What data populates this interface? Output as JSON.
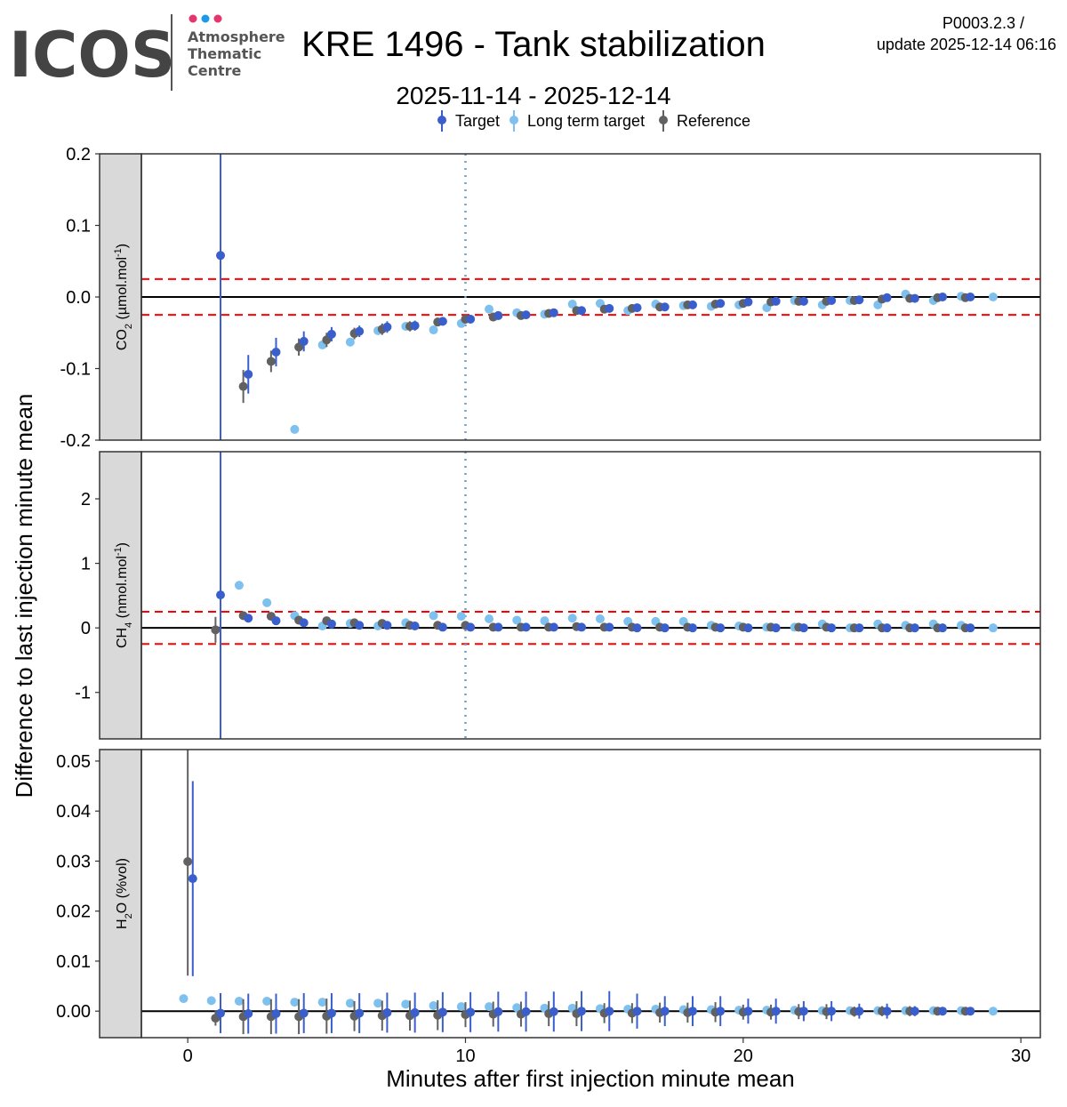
{
  "header": {
    "logo_text": "ICOS",
    "logo_sub": [
      "Atmosphere",
      "Thematic",
      "Centre"
    ],
    "logo_dot_colors": [
      "#e8336d",
      "#1a9ae8",
      "#e8336d"
    ],
    "title": "KRE 1496 - Tank stabilization",
    "subtitle": "2025-11-14 - 2025-12-14",
    "version": "P0003.2.3 /",
    "update": "update  2025-12-14 06:16"
  },
  "legend": [
    {
      "label": "Target",
      "color": "#3a5fcd"
    },
    {
      "label": "Long term target",
      "color": "#7ec0ee"
    },
    {
      "label": "Reference",
      "color": "#616161"
    }
  ],
  "chart_data": {
    "type": "scatter",
    "title": "KRE 1496 - Tank stabilization",
    "subtitle": "2025-11-14 - 2025-12-14",
    "xlabel": "Minutes after first injection minute mean",
    "ylabel": "Difference to last injection minute mean",
    "xlim": [
      -1.67,
      30.7
    ],
    "xticks": [
      "0",
      "10",
      "20",
      "30"
    ],
    "xtick_values": [
      0,
      10,
      20,
      30
    ],
    "vline_x": 10,
    "x_minutes": [
      0,
      1,
      2,
      3,
      4,
      5,
      6,
      7,
      8,
      9,
      10,
      11,
      12,
      13,
      14,
      15,
      16,
      17,
      18,
      19,
      20,
      21,
      22,
      23,
      24,
      25,
      26,
      27,
      28
    ],
    "offsets": {
      "target": 0.18,
      "reference": 0
    },
    "ltt_x": [
      -0.15,
      0.85,
      1.85,
      2.85,
      3.85,
      4.85,
      5.85,
      6.85,
      7.85,
      8.85,
      9.85,
      10.85,
      11.85,
      12.85,
      13.85,
      14.85,
      15.85,
      16.85,
      17.85,
      18.85,
      19.85,
      20.85,
      21.85,
      22.85,
      23.85,
      24.85,
      25.85,
      26.85,
      27.85,
      29
    ],
    "panels": [
      {
        "strip": {
          "main": "CO",
          "sub": "2",
          "rest": " (µmol.mol",
          "sup": "-1",
          "end": ")"
        },
        "ylim": [
          -0.2,
          0.2
        ],
        "yticks": [
          "-0.2",
          "-0.1",
          "0.0",
          "0.1",
          "0.2"
        ],
        "ytick_values": [
          -0.2,
          -0.1,
          0,
          0.1,
          0.2
        ],
        "threshold": 0.025,
        "show_vline": true,
        "target": {
          "y": [
            null,
            0.058,
            -0.108,
            -0.077,
            -0.062,
            -0.052,
            -0.048,
            -0.042,
            -0.04,
            -0.034,
            -0.031,
            -0.026,
            -0.025,
            -0.022,
            -0.019,
            -0.016,
            -0.015,
            -0.014,
            -0.011,
            -0.009,
            -0.007,
            -0.006,
            -0.006,
            -0.005,
            -0.004,
            -0.001,
            -0.002,
            0,
            0
          ],
          "err": [
            null,
            1,
            0.027,
            0.02,
            0.014,
            0.01,
            0.008,
            0.008,
            0.007,
            0.006,
            0.006,
            0.006,
            0.005,
            0.005,
            0.005,
            0.004,
            0.004,
            0.004,
            0.004,
            0.004,
            0.003,
            0.003,
            0.003,
            0.003,
            0.003,
            0.003,
            0.003,
            0.003,
            0.003
          ]
        },
        "reference": {
          "y": [
            null,
            null,
            -0.125,
            -0.09,
            -0.07,
            -0.06,
            -0.051,
            -0.045,
            -0.041,
            -0.035,
            -0.031,
            -0.028,
            -0.026,
            -0.023,
            -0.019,
            -0.017,
            -0.016,
            -0.014,
            -0.011,
            -0.01,
            -0.009,
            -0.007,
            -0.006,
            -0.006,
            -0.005,
            -0.003,
            -0.002,
            -0.001,
            -0.001
          ],
          "err": [
            null,
            null,
            0.023,
            0.015,
            0.012,
            0.01,
            0.008,
            0.008,
            0.007,
            0.006,
            0.006,
            0.006,
            0.005,
            0.005,
            0.005,
            0.004,
            0.004,
            0.004,
            0.004,
            0.004,
            0.003,
            0.003,
            0.003,
            0.003,
            0.003,
            0.003,
            0.003,
            0.003,
            0.003
          ]
        },
        "ltt": {
          "y": [
            null,
            null,
            null,
            null,
            -0.185,
            -0.067,
            -0.063,
            -0.047,
            -0.041,
            -0.046,
            -0.037,
            -0.017,
            -0.022,
            -0.024,
            -0.01,
            -0.009,
            -0.019,
            -0.01,
            -0.012,
            -0.013,
            -0.011,
            -0.015,
            -0.005,
            -0.011,
            -0.005,
            -0.011,
            0.004,
            -0.005,
            0.001,
            0
          ]
        }
      },
      {
        "strip": {
          "main": "CH",
          "sub": "4",
          "rest": " (nmol.mol",
          "sup": "-1",
          "end": ")"
        },
        "ylim": [
          -1.72,
          2.73
        ],
        "yticks": [
          "-1",
          "0",
          "1",
          "2"
        ],
        "ytick_values": [
          -1,
          0,
          1,
          2
        ],
        "threshold": 0.25,
        "show_vline": true,
        "target": {
          "y": [
            null,
            0.51,
            0.15,
            0.11,
            0.08,
            0.06,
            0.04,
            0.04,
            0.03,
            0.01,
            0.01,
            0.01,
            0.01,
            0.01,
            0.01,
            0.01,
            0,
            0,
            0,
            0,
            0,
            0,
            0,
            0,
            0,
            0,
            0,
            0,
            0
          ],
          "err": [
            null,
            10,
            0.04,
            0.03,
            0.03,
            0.03,
            0.03,
            0.03,
            0.02,
            0.02,
            0.02,
            0.02,
            0.02,
            0.02,
            0.02,
            0.02,
            0.02,
            0.02,
            0.02,
            0.02,
            0.02,
            0.02,
            0.02,
            0.02,
            0.02,
            0.02,
            0.02,
            0.02,
            0.02
          ]
        },
        "reference": {
          "y": [
            null,
            -0.03,
            0.19,
            0.18,
            0.12,
            0.11,
            0.08,
            0.07,
            0.04,
            0.04,
            0.04,
            0.01,
            0.01,
            0.01,
            0.02,
            0.01,
            0.01,
            0.01,
            0.01,
            0.01,
            0.01,
            0.01,
            0.01,
            0.01,
            0,
            0,
            0,
            0,
            0
          ],
          "err": [
            null,
            0.2,
            0.05,
            0.04,
            0.03,
            0.03,
            0.03,
            0.03,
            0.03,
            0.03,
            0.02,
            0.02,
            0.02,
            0.02,
            0.02,
            0.02,
            0.02,
            0.02,
            0.02,
            0.02,
            0.02,
            0.02,
            0.02,
            0.02,
            0.02,
            0.02,
            0.02,
            0.02,
            0.02
          ]
        },
        "ltt": {
          "y": [
            null,
            null,
            0.66,
            0.39,
            0.19,
            0.03,
            0.07,
            0.03,
            0.08,
            0.19,
            0.18,
            0.14,
            0.12,
            0.11,
            0.15,
            0.14,
            0.1,
            0.1,
            0.1,
            0.04,
            0.03,
            0.01,
            0.01,
            0.06,
            0,
            0.06,
            0.04,
            0.06,
            0.04,
            0
          ]
        }
      },
      {
        "strip": {
          "main": "H",
          "sub": "2",
          "rest": "O (%vol)",
          "sup": "",
          "end": ""
        },
        "ylim": [
          -0.0053,
          0.0523
        ],
        "yticks": [
          "0.00",
          "0.01",
          "0.02",
          "0.03",
          "0.04",
          "0.05"
        ],
        "ytick_values": [
          0,
          0.01,
          0.02,
          0.03,
          0.04,
          0.05
        ],
        "threshold": null,
        "show_vline": false,
        "target": {
          "y": [
            0.0265,
            -0.0004,
            -0.0005,
            -0.0005,
            -0.0004,
            -0.0004,
            -0.0004,
            -0.0003,
            -0.0003,
            -0.0002,
            -0.0002,
            -0.0001,
            -0.0001,
            -0.0001,
            0,
            0,
            0,
            0,
            0,
            0,
            0,
            0,
            0,
            0,
            0,
            0,
            0,
            0,
            0
          ],
          "err": [
            0.0195,
            0.004,
            0.004,
            0.004,
            0.004,
            0.004,
            0.004,
            0.004,
            0.004,
            0.004,
            0.004,
            0.004,
            0.004,
            0.004,
            0.004,
            0.004,
            0.0035,
            0.003,
            0.003,
            0.003,
            0.0025,
            0.0025,
            0.002,
            0.002,
            0.0015,
            0.0015,
            0.001,
            0.0005,
            0.0005
          ]
        },
        "reference": {
          "y": [
            0.0299,
            -0.0014,
            -0.0011,
            -0.0011,
            -0.0011,
            -0.001,
            -0.001,
            -0.0009,
            -0.0009,
            -0.0008,
            -0.0007,
            -0.0006,
            -0.0006,
            -0.0005,
            -0.0005,
            -0.0004,
            -0.0004,
            -0.0003,
            -0.0003,
            -0.0002,
            -0.0002,
            -0.0002,
            -0.0001,
            -0.0001,
            -0.0001,
            0,
            0,
            0,
            0
          ],
          "err": [
            0.0228,
            0.0015,
            0.0035,
            0.0035,
            0.0035,
            0.0035,
            0.003,
            0.003,
            0.003,
            0.003,
            0.0025,
            0.0025,
            0.0025,
            0.0025,
            0.0025,
            0.002,
            0.002,
            0.002,
            0.002,
            0.002,
            0.0015,
            0.0015,
            0.0015,
            0.0015,
            0.001,
            0.001,
            0.001,
            0.0005,
            0.0005
          ]
        },
        "ltt": {
          "y": [
            0.0025,
            0.0021,
            0.002,
            0.002,
            0.0018,
            0.0018,
            0.0016,
            0.0016,
            0.0014,
            0.0011,
            0.0009,
            0.0009,
            0.0007,
            0.0006,
            0.0006,
            0.0005,
            0.0004,
            0.0004,
            0.0003,
            0.0003,
            0.0002,
            0.0002,
            0.0002,
            0.0001,
            0.0001,
            0.0001,
            0.0001,
            0.0001,
            0.0001,
            0
          ]
        }
      }
    ],
    "colors": {
      "target": "#3a5fcd",
      "ltt": "#7ec0ee",
      "reference": "#616161",
      "threshold": "#ff0000",
      "vline": "#6ea0c8"
    }
  }
}
